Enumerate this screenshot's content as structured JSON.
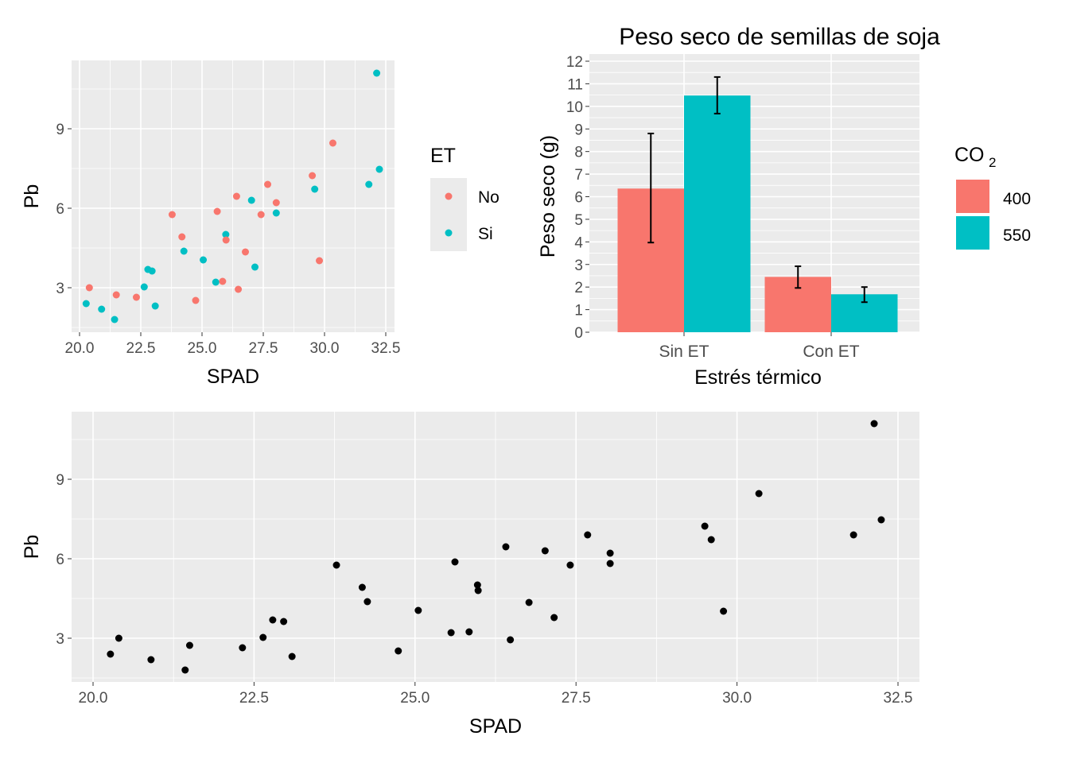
{
  "chart_data": [
    {
      "type": "scatter",
      "id": "colored",
      "xlabel": "SPAD",
      "ylabel": "Pb",
      "xticks": [
        "20.0",
        "22.5",
        "25.0",
        "27.5",
        "30.0",
        "32.5"
      ],
      "yticks": [
        "3",
        "6",
        "9"
      ],
      "xlim": [
        19.7,
        33.0
      ],
      "ylim": [
        1.4,
        11.6
      ],
      "legend": {
        "title": "ET",
        "position": "right",
        "entries": [
          {
            "label": "No",
            "color": "#F8766D"
          },
          {
            "label": "Si",
            "color": "#00BFC4"
          }
        ]
      },
      "points": [
        {
          "x": 20.27,
          "y": 2.4,
          "g": "Si"
        },
        {
          "x": 20.4,
          "y": 3.0,
          "g": "No"
        },
        {
          "x": 20.9,
          "y": 2.19,
          "g": "Si"
        },
        {
          "x": 21.43,
          "y": 1.8,
          "g": "Si"
        },
        {
          "x": 21.5,
          "y": 2.73,
          "g": "No"
        },
        {
          "x": 22.32,
          "y": 2.64,
          "g": "No"
        },
        {
          "x": 22.64,
          "y": 3.03,
          "g": "Si"
        },
        {
          "x": 22.79,
          "y": 3.69,
          "g": "Si"
        },
        {
          "x": 22.96,
          "y": 3.63,
          "g": "Si"
        },
        {
          "x": 23.09,
          "y": 2.31,
          "g": "Si"
        },
        {
          "x": 23.78,
          "y": 5.76,
          "g": "No"
        },
        {
          "x": 24.18,
          "y": 4.92,
          "g": "No"
        },
        {
          "x": 24.26,
          "y": 4.38,
          "g": "Si"
        },
        {
          "x": 24.74,
          "y": 2.52,
          "g": "No"
        },
        {
          "x": 25.05,
          "y": 4.05,
          "g": "Si"
        },
        {
          "x": 25.56,
          "y": 3.21,
          "g": "Si"
        },
        {
          "x": 25.62,
          "y": 5.88,
          "g": "No"
        },
        {
          "x": 25.84,
          "y": 3.24,
          "g": "No"
        },
        {
          "x": 25.97,
          "y": 5.01,
          "g": "Si"
        },
        {
          "x": 25.98,
          "y": 4.8,
          "g": "No"
        },
        {
          "x": 26.41,
          "y": 6.45,
          "g": "No"
        },
        {
          "x": 26.48,
          "y": 2.94,
          "g": "No"
        },
        {
          "x": 26.77,
          "y": 4.35,
          "g": "No"
        },
        {
          "x": 27.02,
          "y": 6.3,
          "g": "Si"
        },
        {
          "x": 27.16,
          "y": 3.78,
          "g": "Si"
        },
        {
          "x": 27.41,
          "y": 5.76,
          "g": "No"
        },
        {
          "x": 27.68,
          "y": 6.9,
          "g": "No"
        },
        {
          "x": 28.03,
          "y": 6.21,
          "g": "No"
        },
        {
          "x": 28.03,
          "y": 5.82,
          "g": "Si"
        },
        {
          "x": 29.5,
          "y": 7.23,
          "g": "No"
        },
        {
          "x": 29.6,
          "y": 6.72,
          "g": "Si"
        },
        {
          "x": 29.79,
          "y": 4.02,
          "g": "No"
        },
        {
          "x": 30.34,
          "y": 8.46,
          "g": "No"
        },
        {
          "x": 31.81,
          "y": 6.9,
          "g": "Si"
        },
        {
          "x": 32.13,
          "y": 11.1,
          "g": "Si"
        },
        {
          "x": 32.24,
          "y": 7.47,
          "g": "Si"
        }
      ]
    },
    {
      "type": "bar",
      "id": "bars",
      "title": "Peso seco de semillas de soja",
      "xlabel": "Estrés térmico",
      "ylabel": "Peso seco (g)",
      "ylim": [
        0,
        12
      ],
      "yticks": [
        "0",
        "1",
        "2",
        "3",
        "4",
        "5",
        "6",
        "7",
        "8",
        "9",
        "10",
        "11",
        "12"
      ],
      "categories": [
        "Sin ET",
        "Con ET"
      ],
      "legend": {
        "title": "CO",
        "title_sub": "2",
        "position": "right"
      },
      "series": [
        {
          "name": "400",
          "color": "#F8766D",
          "values": [
            6.36,
            2.45
          ],
          "err_low": [
            3.97,
            1.96
          ],
          "err_high": [
            8.8,
            2.92
          ]
        },
        {
          "name": "550",
          "color": "#00BFC4",
          "values": [
            10.48,
            1.68
          ],
          "err_low": [
            9.68,
            1.33
          ],
          "err_high": [
            11.3,
            2.0
          ]
        }
      ]
    },
    {
      "type": "scatter",
      "id": "black",
      "xlabel": "SPAD",
      "ylabel": "Pb",
      "xticks": [
        "20.0",
        "22.5",
        "25.0",
        "27.5",
        "30.0",
        "32.5"
      ],
      "yticks": [
        "3",
        "6",
        "9"
      ],
      "xlim": [
        19.7,
        33.0
      ],
      "ylim": [
        1.4,
        11.6
      ],
      "color": "#000000",
      "points_from": "colored"
    }
  ]
}
